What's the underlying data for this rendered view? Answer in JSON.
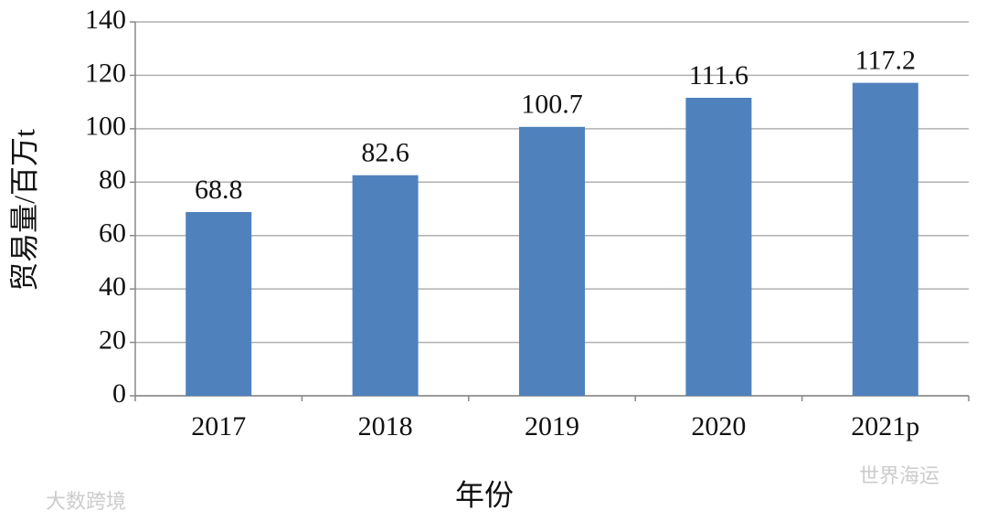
{
  "chart_data": {
    "type": "bar",
    "y_label": "贸易量/百万t",
    "x_label": "年份",
    "categories": [
      "2017",
      "2018",
      "2019",
      "2020",
      "2021p"
    ],
    "values": [
      68.8,
      82.6,
      100.7,
      111.6,
      117.2
    ],
    "color": "#4f81bd",
    "ylim": [
      0,
      140
    ],
    "yticks": [
      0,
      20,
      40,
      60,
      80,
      100,
      120,
      140
    ],
    "grid": true,
    "watermarks": [
      "世界海运",
      "大数跨境"
    ]
  }
}
